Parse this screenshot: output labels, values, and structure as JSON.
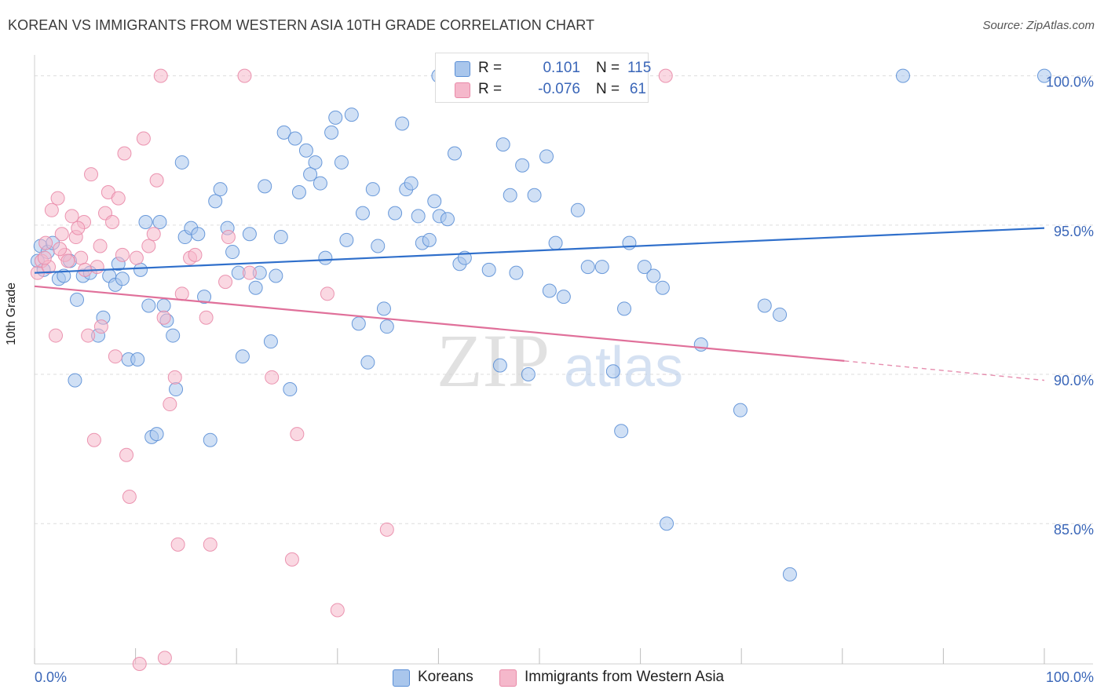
{
  "title": "KOREAN VS IMMIGRANTS FROM WESTERN ASIA 10TH GRADE CORRELATION CHART",
  "source": "Source: ZipAtlas.com",
  "watermark": {
    "zip": "ZIP",
    "atlas": "atlas"
  },
  "colors": {
    "blue_fill": "#a9c6ec",
    "blue_stroke": "#5b8fd6",
    "blue_line": "#2f6fcb",
    "pink_fill": "#f5b8cb",
    "pink_stroke": "#e98aa8",
    "pink_line": "#e0709a",
    "axis_text_blue": "#3a66b8",
    "grid": "#dddddd"
  },
  "legend": {
    "rows": [
      {
        "r_label": "R =",
        "r_value": "0.101",
        "n_label": "N =",
        "n_value": "115",
        "color": "#a9c6ec"
      },
      {
        "r_label": "R =",
        "r_value": "-0.076",
        "n_label": "N =",
        "n_value": "61",
        "color": "#f5b8cb"
      }
    ]
  },
  "bottom_legend": [
    {
      "label": "Koreans",
      "color": "#a9c6ec"
    },
    {
      "label": "Immigrants from Western Asia",
      "color": "#f5b8cb"
    }
  ],
  "chart_data": {
    "type": "scatter",
    "title": "KOREAN VS IMMIGRANTS FROM WESTERN ASIA 10TH GRADE CORRELATION CHART",
    "xlabel": "",
    "ylabel": "10th Grade",
    "xlim": [
      0,
      100
    ],
    "ylim": [
      80.3,
      100.7
    ],
    "x_tick_labels": [
      {
        "value": 0,
        "label": "0.0%"
      },
      {
        "value": 100,
        "label": "100.0%"
      }
    ],
    "y_tick_labels": [
      {
        "value": 100,
        "label": "100.0%"
      },
      {
        "value": 95,
        "label": "95.0%"
      },
      {
        "value": 90,
        "label": "90.0%"
      },
      {
        "value": 85,
        "label": "85.0%"
      }
    ],
    "grid": "horizontal dashed",
    "series": [
      {
        "name": "Koreans",
        "color": "#a9c6ec",
        "trend": {
          "x": [
            0,
            100
          ],
          "y": [
            93.4,
            94.9
          ]
        },
        "points": [
          [
            0.3,
            93.8
          ],
          [
            0.6,
            94.3
          ],
          [
            0.9,
            93.5
          ],
          [
            1.3,
            94.1
          ],
          [
            1.8,
            94.4
          ],
          [
            2.4,
            93.2
          ],
          [
            2.9,
            93.3
          ],
          [
            3.5,
            93.8
          ],
          [
            4.2,
            92.5
          ],
          [
            4.0,
            89.8
          ],
          [
            4.8,
            93.3
          ],
          [
            5.5,
            93.4
          ],
          [
            6.3,
            91.3
          ],
          [
            6.8,
            91.9
          ],
          [
            7.4,
            93.3
          ],
          [
            8.0,
            93.0
          ],
          [
            8.3,
            93.7
          ],
          [
            8.7,
            93.2
          ],
          [
            9.3,
            90.5
          ],
          [
            10.2,
            90.5
          ],
          [
            10.5,
            93.5
          ],
          [
            11.0,
            95.1
          ],
          [
            11.3,
            92.3
          ],
          [
            11.6,
            87.9
          ],
          [
            12.1,
            88.0
          ],
          [
            12.4,
            95.1
          ],
          [
            12.8,
            92.3
          ],
          [
            13.1,
            91.8
          ],
          [
            13.7,
            91.3
          ],
          [
            14.0,
            89.5
          ],
          [
            14.6,
            97.1
          ],
          [
            14.9,
            94.6
          ],
          [
            15.5,
            94.9
          ],
          [
            16.2,
            94.7
          ],
          [
            16.8,
            92.6
          ],
          [
            17.4,
            87.8
          ],
          [
            17.9,
            95.8
          ],
          [
            18.4,
            96.2
          ],
          [
            19.1,
            94.9
          ],
          [
            19.6,
            94.1
          ],
          [
            20.2,
            93.4
          ],
          [
            20.6,
            90.6
          ],
          [
            21.3,
            94.7
          ],
          [
            21.9,
            92.9
          ],
          [
            22.3,
            93.4
          ],
          [
            22.8,
            96.3
          ],
          [
            23.4,
            91.1
          ],
          [
            23.9,
            93.3
          ],
          [
            24.4,
            94.6
          ],
          [
            24.7,
            98.1
          ],
          [
            25.3,
            89.5
          ],
          [
            25.8,
            97.9
          ],
          [
            26.2,
            96.1
          ],
          [
            26.9,
            97.5
          ],
          [
            27.3,
            96.7
          ],
          [
            27.8,
            97.1
          ],
          [
            28.3,
            96.4
          ],
          [
            28.8,
            93.9
          ],
          [
            29.4,
            98.1
          ],
          [
            29.8,
            98.6
          ],
          [
            30.4,
            97.1
          ],
          [
            30.9,
            94.5
          ],
          [
            31.4,
            98.7
          ],
          [
            32.1,
            91.7
          ],
          [
            32.5,
            95.4
          ],
          [
            33.0,
            90.4
          ],
          [
            33.5,
            96.2
          ],
          [
            34.0,
            94.3
          ],
          [
            34.6,
            92.2
          ],
          [
            34.9,
            91.6
          ],
          [
            35.7,
            95.4
          ],
          [
            36.4,
            98.4
          ],
          [
            36.8,
            96.2
          ],
          [
            37.3,
            96.4
          ],
          [
            38.0,
            95.3
          ],
          [
            38.4,
            94.4
          ],
          [
            39.1,
            94.5
          ],
          [
            39.6,
            95.8
          ],
          [
            40.1,
            95.3
          ],
          [
            40.9,
            95.2
          ],
          [
            41.6,
            97.4
          ],
          [
            42.1,
            93.7
          ],
          [
            42.6,
            93.9
          ],
          [
            45.0,
            93.5
          ],
          [
            46.1,
            90.3
          ],
          [
            46.4,
            97.7
          ],
          [
            47.1,
            96.0
          ],
          [
            47.7,
            93.4
          ],
          [
            48.3,
            97.0
          ],
          [
            48.9,
            90.0
          ],
          [
            49.5,
            96.0
          ],
          [
            50.7,
            97.3
          ],
          [
            51.0,
            92.8
          ],
          [
            51.6,
            94.4
          ],
          [
            52.4,
            92.6
          ],
          [
            53.8,
            95.5
          ],
          [
            54.8,
            93.6
          ],
          [
            55.2,
            99.5
          ],
          [
            56.2,
            93.6
          ],
          [
            57.3,
            90.1
          ],
          [
            58.1,
            88.1
          ],
          [
            58.4,
            92.2
          ],
          [
            58.9,
            94.4
          ],
          [
            60.4,
            93.6
          ],
          [
            61.3,
            93.3
          ],
          [
            62.2,
            92.9
          ],
          [
            62.6,
            85.0
          ],
          [
            66.0,
            91.0
          ],
          [
            69.9,
            88.8
          ],
          [
            72.3,
            92.3
          ],
          [
            73.8,
            92.0
          ],
          [
            74.8,
            83.3
          ],
          [
            86.0,
            100.0
          ],
          [
            100.0,
            100.0
          ],
          [
            40.0,
            100.0
          ]
        ]
      },
      {
        "name": "Immigrants from Western Asia",
        "color": "#f5b8cb",
        "trend": {
          "x": [
            0,
            80.2
          ],
          "y": [
            92.95,
            90.45
          ],
          "dashed_to": {
            "x": 100,
            "y": 89.8
          }
        },
        "points": [
          [
            0.3,
            93.4
          ],
          [
            0.7,
            93.8
          ],
          [
            1.1,
            94.4
          ],
          [
            1.4,
            93.6
          ],
          [
            1.7,
            95.5
          ],
          [
            2.1,
            91.3
          ],
          [
            2.3,
            95.9
          ],
          [
            2.7,
            94.7
          ],
          [
            3.0,
            94.0
          ],
          [
            3.3,
            93.8
          ],
          [
            3.7,
            95.3
          ],
          [
            4.1,
            94.6
          ],
          [
            4.6,
            93.9
          ],
          [
            4.9,
            95.1
          ],
          [
            5.3,
            91.3
          ],
          [
            5.6,
            96.7
          ],
          [
            5.9,
            87.8
          ],
          [
            6.2,
            93.6
          ],
          [
            6.6,
            91.6
          ],
          [
            7.0,
            95.4
          ],
          [
            7.3,
            96.1
          ],
          [
            7.7,
            95.1
          ],
          [
            8.0,
            90.6
          ],
          [
            8.3,
            95.9
          ],
          [
            8.7,
            94.0
          ],
          [
            8.9,
            97.4
          ],
          [
            9.1,
            87.3
          ],
          [
            9.4,
            85.9
          ],
          [
            10.1,
            93.9
          ],
          [
            10.4,
            80.3
          ],
          [
            10.8,
            97.9
          ],
          [
            11.3,
            94.3
          ],
          [
            11.8,
            94.7
          ],
          [
            12.1,
            96.5
          ],
          [
            12.5,
            100.0
          ],
          [
            12.8,
            91.9
          ],
          [
            12.9,
            80.5
          ],
          [
            13.4,
            89.0
          ],
          [
            13.9,
            89.9
          ],
          [
            14.2,
            84.3
          ],
          [
            14.6,
            92.7
          ],
          [
            15.4,
            93.9
          ],
          [
            15.9,
            94.0
          ],
          [
            17.0,
            91.9
          ],
          [
            17.4,
            84.3
          ],
          [
            18.9,
            93.1
          ],
          [
            19.2,
            94.6
          ],
          [
            20.8,
            100.0
          ],
          [
            21.3,
            93.4
          ],
          [
            23.5,
            89.9
          ],
          [
            25.5,
            83.8
          ],
          [
            26.0,
            88.0
          ],
          [
            29.0,
            92.7
          ],
          [
            30.0,
            82.1
          ],
          [
            34.9,
            84.8
          ],
          [
            62.5,
            100.0
          ],
          [
            1.0,
            93.9
          ],
          [
            2.5,
            94.2
          ],
          [
            4.3,
            94.9
          ],
          [
            5.0,
            93.5
          ],
          [
            6.5,
            94.3
          ]
        ]
      }
    ]
  }
}
